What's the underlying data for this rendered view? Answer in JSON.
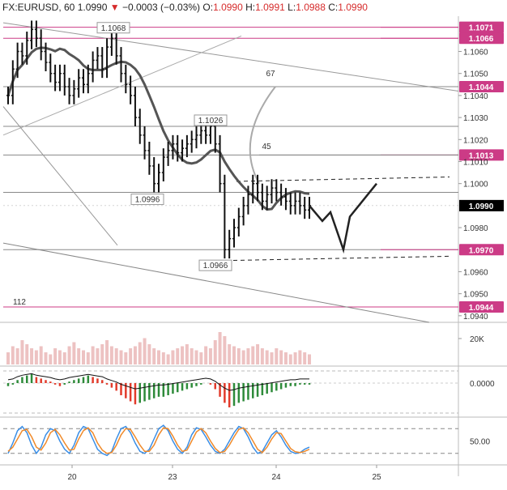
{
  "header": {
    "symbol": "FX:EURUSD, 60",
    "last": "1.0990",
    "change": "−0.0003 (−0.03%)",
    "o_label": "O:",
    "o": "1.0990",
    "h_label": "H:",
    "h": "1.0991",
    "l_label": "L:",
    "l": "1.0988",
    "c_label": "C:",
    "c": "1.0990"
  },
  "colors": {
    "bull": "#111111",
    "ma": "#555555",
    "level": "#cc3b86",
    "last_tag": "#000000",
    "macd_up": "#2e8b3a",
    "macd_down": "#e23b2b",
    "stoch_k": "#3a8ee6",
    "stoch_d": "#f08a2a",
    "volume": "#e6a8a8"
  },
  "chart_data": [
    {
      "type": "line",
      "title": "",
      "x_ticks": [
        "20",
        "23",
        "24",
        "25"
      ],
      "ylim": [
        1.0937,
        1.1076
      ],
      "y_ticks": [
        "1.1060",
        "1.1050",
        "1.1040",
        "1.1030",
        "1.1020",
        "1.1010",
        "1.1000",
        "1.0980",
        "1.0960",
        "1.0950",
        "1.0940"
      ],
      "price_labels": [
        {
          "label": "1.1068",
          "value": 1.1068
        },
        {
          "label": "1.1026",
          "value": 1.1026
        },
        {
          "label": "1.0996",
          "value": 1.0996
        },
        {
          "label": "1.0966",
          "value": 1.0966
        }
      ],
      "levels": [
        {
          "label": "1.1071",
          "value": 1.1071
        },
        {
          "label": "1.1066",
          "value": 1.1066
        },
        {
          "label": "1.1044",
          "value": 1.1044
        },
        {
          "label": "1.1013",
          "value": 1.1013
        },
        {
          "label": "1.0970",
          "value": 1.097
        },
        {
          "label": "1.0944",
          "value": 1.0944
        }
      ],
      "last_price": {
        "label": "1.0990",
        "value": 1.099
      },
      "annotations": [
        {
          "text": "67"
        },
        {
          "text": "45"
        },
        {
          "text": "112"
        }
      ],
      "series": [
        {
          "values": [
            1.104,
            1.1052,
            1.106,
            1.1058,
            1.1065,
            1.107,
            1.1066,
            1.106,
            1.1055,
            1.105,
            1.1046,
            1.105,
            1.1044,
            1.104,
            1.1043,
            1.1048,
            1.1045,
            1.105,
            1.1056,
            1.1058,
            1.1052,
            1.1062,
            1.1066,
            1.1058,
            1.105,
            1.1045,
            1.104,
            1.103,
            1.1022,
            1.1015,
            1.1008,
            1.1,
            1.1005,
            1.1012,
            1.1015,
            1.1018,
            1.1014,
            1.1016,
            1.1018,
            1.102,
            1.1022,
            1.1024,
            1.1022,
            1.1026,
            1.1018,
            1.1,
            1.097,
            1.0975,
            1.098,
            1.0985,
            1.099,
            1.0995,
            1.1,
            1.0996,
            1.0992,
            1.0995,
            1.0998,
            1.0996,
            1.0994,
            1.0992,
            1.099,
            1.0992,
            1.099,
            1.0988,
            1.099
          ]
        },
        {
          "values": [
            1.099,
            1.0983,
            1.0987,
            1.097,
            1.0985,
            1.1
          ]
        }
      ]
    },
    {
      "type": "bar",
      "title": "",
      "y_ticks": [
        "20K"
      ],
      "values": [
        6,
        9,
        8,
        12,
        10,
        8,
        7,
        9,
        6,
        5,
        8,
        7,
        6,
        9,
        11,
        8,
        7,
        6,
        9,
        8,
        10,
        12,
        9,
        8,
        7,
        6,
        8,
        9,
        11,
        13,
        10,
        8,
        7,
        6,
        5,
        7,
        8,
        9,
        10,
        8,
        7,
        6,
        9,
        8,
        12,
        16,
        14,
        10,
        9,
        8,
        7,
        8,
        9,
        10,
        8,
        7,
        6,
        8,
        7,
        6,
        5,
        6,
        7,
        6,
        5
      ]
    },
    {
      "type": "bar",
      "title": "",
      "y_ticks": [
        "0.0000"
      ],
      "values": [
        -2,
        -1,
        2,
        4,
        5,
        6,
        4,
        3,
        2,
        1,
        -1,
        -2,
        -1,
        1,
        2,
        3,
        4,
        5,
        4,
        3,
        2,
        -1,
        -3,
        -5,
        -8,
        -10,
        -12,
        -14,
        -13,
        -12,
        -11,
        -10,
        -9,
        -9,
        -8,
        -7,
        -6,
        -5,
        -4,
        -3,
        -2,
        -1,
        0,
        -1,
        -4,
        -9,
        -13,
        -16,
        -15,
        -13,
        -12,
        -11,
        -10,
        -9,
        -8,
        -7,
        -6,
        -5,
        -4,
        -3,
        -2,
        -2,
        -1,
        -1,
        -1
      ]
    },
    {
      "type": "line",
      "title": "",
      "y_ticks": [
        "50.00"
      ],
      "series": [
        {
          "values": [
            20,
            45,
            75,
            85,
            70,
            40,
            20,
            35,
            65,
            80,
            75,
            50,
            30,
            20,
            40,
            70,
            85,
            80,
            55,
            30,
            20,
            15,
            25,
            55,
            80,
            85,
            70,
            45,
            25,
            20,
            30,
            55,
            80,
            88,
            75,
            50,
            30,
            20,
            35,
            65,
            82,
            78,
            60,
            40,
            25,
            20,
            30,
            50,
            70,
            85,
            80,
            60,
            35,
            20,
            25,
            45,
            65,
            75,
            60,
            40,
            25,
            20,
            22,
            30,
            35
          ]
        },
        {
          "values": [
            25,
            35,
            55,
            75,
            78,
            60,
            35,
            28,
            45,
            70,
            78,
            65,
            45,
            28,
            30,
            55,
            75,
            82,
            70,
            45,
            28,
            20,
            22,
            40,
            65,
            80,
            78,
            60,
            40,
            25,
            25,
            40,
            65,
            82,
            80,
            62,
            40,
            25,
            28,
            50,
            72,
            80,
            70,
            50,
            32,
            22,
            25,
            40,
            60,
            78,
            82,
            70,
            50,
            30,
            22,
            35,
            55,
            70,
            68,
            50,
            32,
            24,
            22,
            25,
            30
          ]
        }
      ]
    }
  ],
  "x_axis": {
    "ticks": [
      "20",
      "23",
      "24",
      "25"
    ]
  }
}
